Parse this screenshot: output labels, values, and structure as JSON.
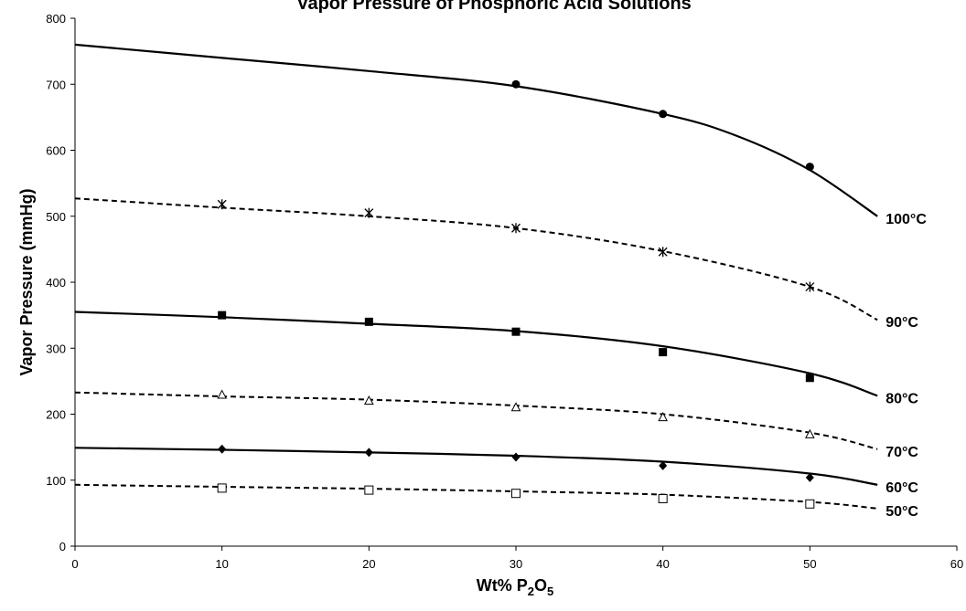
{
  "chart_data": {
    "type": "line",
    "title": "Vapor Pressure of Phosphoric Acid Solutions",
    "xlabel": {
      "main": "Wt% P",
      "sub1": "2",
      "mid": "O",
      "sub2": "5"
    },
    "ylabel": "Vapor Pressure (mmHg)",
    "xlim": [
      0,
      60
    ],
    "ylim": [
      0,
      800
    ],
    "xticks": [
      0,
      10,
      20,
      30,
      40,
      50,
      60
    ],
    "yticks": [
      0,
      100,
      200,
      300,
      400,
      500,
      600,
      700,
      800
    ],
    "grid": false,
    "legend": "labels at right end of each curve",
    "series": [
      {
        "name": "100°C",
        "line_style": "solid",
        "marker": "circle",
        "points": [
          [
            10,
            null
          ],
          [
            30,
            700
          ],
          [
            40,
            655
          ],
          [
            50,
            575
          ]
        ],
        "curve": [
          [
            0,
            760
          ],
          [
            10,
            740
          ],
          [
            20,
            720
          ],
          [
            30,
            697
          ],
          [
            40,
            655
          ],
          [
            45,
            622
          ],
          [
            50,
            570
          ],
          [
            54.6,
            500
          ]
        ]
      },
      {
        "name": "90°C",
        "line_style": "dashed",
        "marker": "asterisk",
        "points": [
          [
            10,
            518
          ],
          [
            20,
            505
          ],
          [
            30,
            482
          ],
          [
            40,
            446
          ],
          [
            50,
            393
          ]
        ],
        "curve": [
          [
            0,
            527
          ],
          [
            10,
            513
          ],
          [
            20,
            500
          ],
          [
            30,
            482
          ],
          [
            40,
            447
          ],
          [
            50,
            393
          ],
          [
            54.6,
            343
          ]
        ]
      },
      {
        "name": "80°C",
        "line_style": "solid",
        "marker": "square",
        "points": [
          [
            10,
            350
          ],
          [
            20,
            340
          ],
          [
            30,
            325
          ],
          [
            40,
            294
          ],
          [
            50,
            255
          ]
        ],
        "curve": [
          [
            0,
            355
          ],
          [
            10,
            347
          ],
          [
            20,
            337
          ],
          [
            30,
            326
          ],
          [
            40,
            303
          ],
          [
            50,
            262
          ],
          [
            54.6,
            228
          ]
        ]
      },
      {
        "name": "70°C",
        "line_style": "dashed",
        "marker": "triangle",
        "points": [
          [
            10,
            229
          ],
          [
            20,
            220
          ],
          [
            30,
            210
          ],
          [
            40,
            195
          ],
          [
            50,
            169
          ]
        ],
        "curve": [
          [
            0,
            233
          ],
          [
            10,
            227
          ],
          [
            20,
            222
          ],
          [
            30,
            213
          ],
          [
            40,
            200
          ],
          [
            50,
            172
          ],
          [
            54.6,
            147
          ]
        ]
      },
      {
        "name": "60°C",
        "line_style": "solid",
        "marker": "diamond",
        "points": [
          [
            10,
            147
          ],
          [
            20,
            142
          ],
          [
            30,
            135
          ],
          [
            40,
            122
          ],
          [
            50,
            104
          ]
        ],
        "curve": [
          [
            0,
            149
          ],
          [
            10,
            146
          ],
          [
            20,
            142
          ],
          [
            30,
            137
          ],
          [
            40,
            128
          ],
          [
            50,
            110
          ],
          [
            54.6,
            93
          ]
        ]
      },
      {
        "name": "50°C",
        "line_style": "dashed",
        "marker": "open-square",
        "points": [
          [
            10,
            88
          ],
          [
            20,
            85
          ],
          [
            30,
            80
          ],
          [
            40,
            72
          ],
          [
            50,
            64
          ]
        ],
        "curve": [
          [
            0,
            93
          ],
          [
            10,
            90
          ],
          [
            20,
            87
          ],
          [
            30,
            83
          ],
          [
            40,
            78
          ],
          [
            50,
            67
          ],
          [
            54.6,
            57
          ]
        ]
      }
    ]
  }
}
